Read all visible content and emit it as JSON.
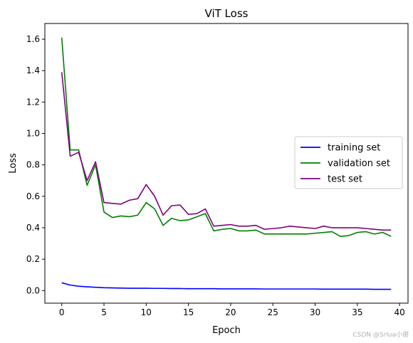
{
  "chart_data": {
    "type": "line",
    "title": "ViT Loss",
    "xlabel": "Epoch",
    "ylabel": "Loss",
    "xlim": [
      -2,
      41
    ],
    "ylim": [
      -0.08,
      1.7
    ],
    "xticks": [
      0,
      5,
      10,
      15,
      20,
      25,
      30,
      35,
      40
    ],
    "xtick_labels": [
      "0",
      "5",
      "10",
      "15",
      "20",
      "25",
      "30",
      "35",
      "40"
    ],
    "yticks": [
      0.0,
      0.2,
      0.4,
      0.6,
      0.8,
      1.0,
      1.2,
      1.4,
      1.6
    ],
    "ytick_labels": [
      "0.0",
      "0.2",
      "0.4",
      "0.6",
      "0.8",
      "1.0",
      "1.2",
      "1.4",
      "1.6"
    ],
    "grid": false,
    "legend_position": "center-right",
    "x": [
      0,
      1,
      2,
      3,
      4,
      5,
      6,
      7,
      8,
      9,
      10,
      11,
      12,
      13,
      14,
      15,
      16,
      17,
      18,
      19,
      20,
      21,
      22,
      23,
      24,
      25,
      26,
      27,
      28,
      29,
      30,
      31,
      32,
      33,
      34,
      35,
      36,
      37,
      38,
      39
    ],
    "series": [
      {
        "name": "training set",
        "color": "#0000ff",
        "values": [
          0.05,
          0.035,
          0.028,
          0.024,
          0.021,
          0.018,
          0.017,
          0.016,
          0.015,
          0.015,
          0.015,
          0.014,
          0.014,
          0.013,
          0.013,
          0.012,
          0.012,
          0.012,
          0.012,
          0.011,
          0.011,
          0.011,
          0.011,
          0.011,
          0.01,
          0.01,
          0.01,
          0.01,
          0.01,
          0.01,
          0.01,
          0.009,
          0.009,
          0.009,
          0.009,
          0.009,
          0.009,
          0.008,
          0.008,
          0.008
        ]
      },
      {
        "name": "validation set",
        "color": "#008000",
        "values": [
          1.61,
          0.895,
          0.895,
          0.67,
          0.8,
          0.5,
          0.465,
          0.475,
          0.47,
          0.48,
          0.56,
          0.52,
          0.415,
          0.46,
          0.445,
          0.45,
          0.47,
          0.49,
          0.38,
          0.39,
          0.395,
          0.38,
          0.38,
          0.385,
          0.36,
          0.36,
          0.36,
          0.36,
          0.36,
          0.36,
          0.365,
          0.37,
          0.375,
          0.345,
          0.35,
          0.37,
          0.375,
          0.36,
          0.37,
          0.345
        ]
      },
      {
        "name": "test set",
        "color": "#800080",
        "values": [
          1.39,
          0.855,
          0.88,
          0.7,
          0.82,
          0.56,
          0.555,
          0.55,
          0.575,
          0.585,
          0.675,
          0.6,
          0.48,
          0.54,
          0.545,
          0.485,
          0.49,
          0.52,
          0.41,
          0.415,
          0.42,
          0.41,
          0.41,
          0.415,
          0.39,
          0.395,
          0.4,
          0.41,
          0.405,
          0.4,
          0.395,
          0.41,
          0.4,
          0.4,
          0.4,
          0.4,
          0.395,
          0.39,
          0.385,
          0.385
        ]
      }
    ]
  },
  "watermark": "CSDN @Srlua小谢"
}
